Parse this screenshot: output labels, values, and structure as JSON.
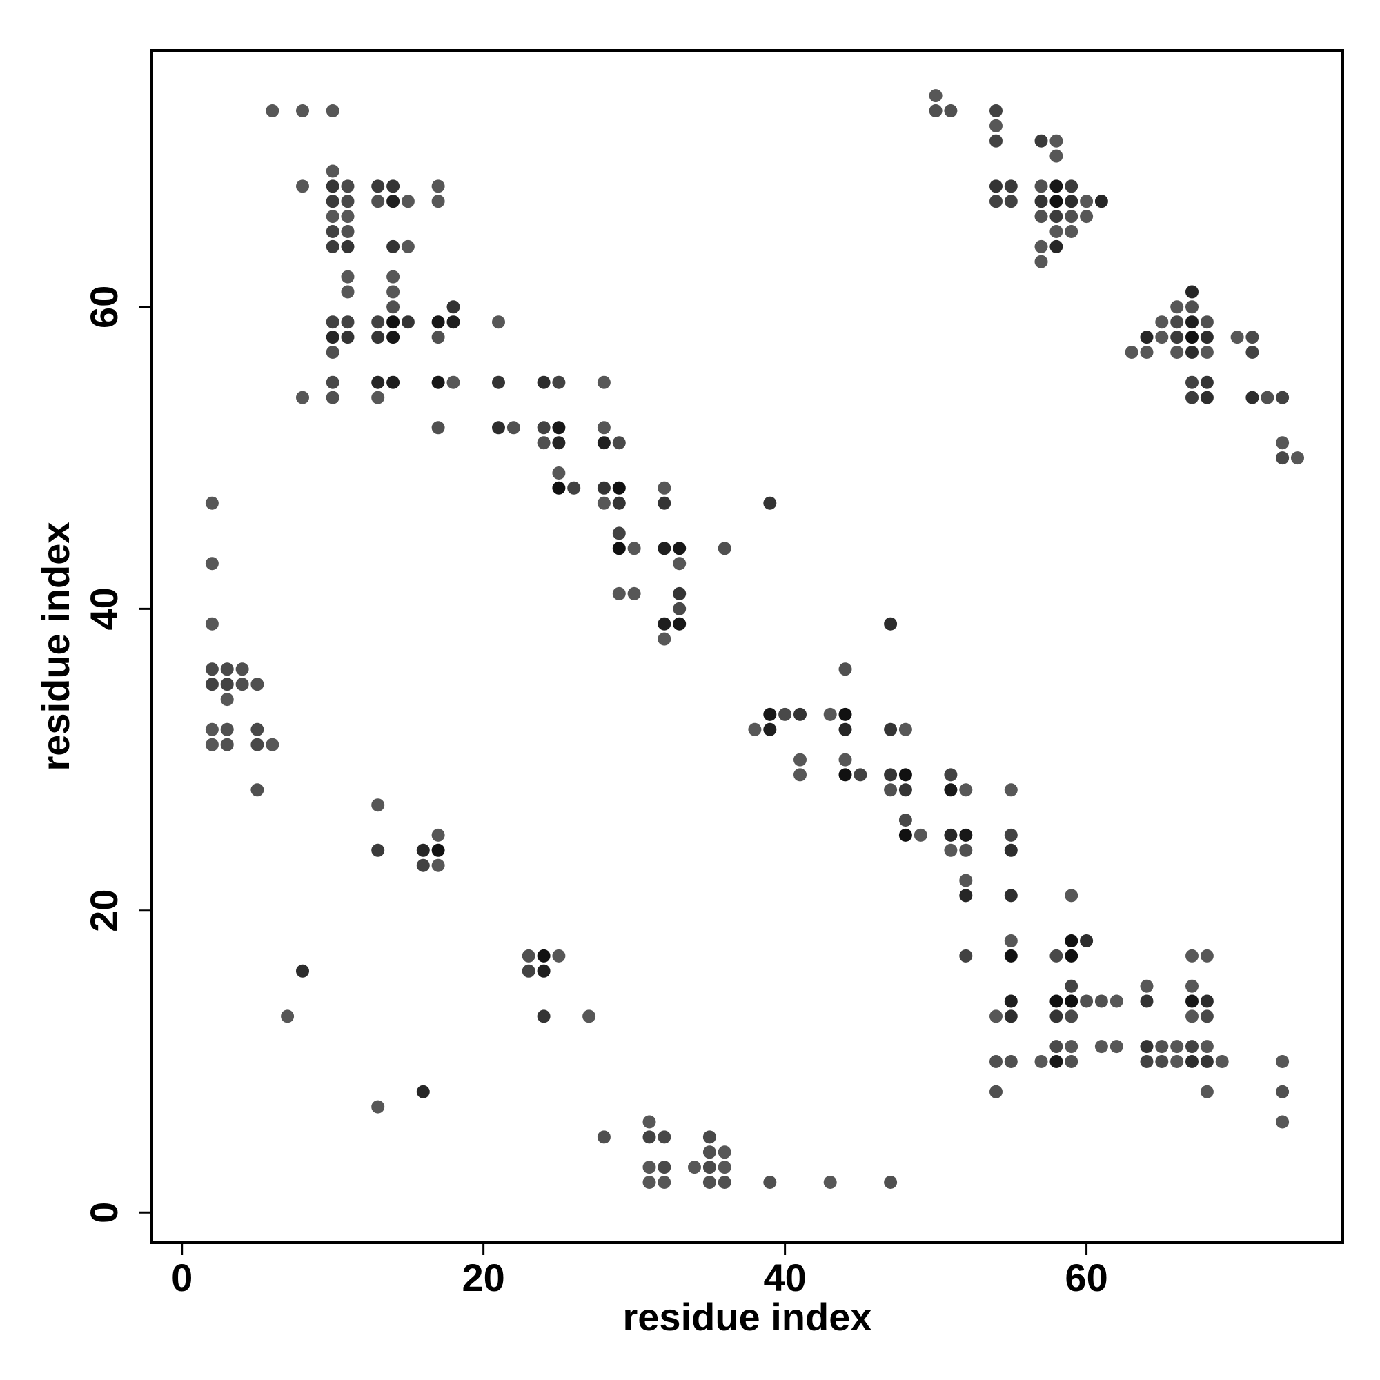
{
  "chart_data": {
    "type": "scatter",
    "xlabel": "residue index",
    "ylabel": "residue index",
    "xlim": [
      -2,
      77
    ],
    "ylim": [
      -2,
      77
    ],
    "x_ticks": [
      0,
      20,
      40,
      60
    ],
    "y_ticks": [
      0,
      20,
      40,
      60
    ],
    "x_tick_labels": [
      "0",
      "20",
      "40",
      "60"
    ],
    "y_tick_labels": [
      "0",
      "20",
      "40",
      "60"
    ],
    "grid": false,
    "legend": "none",
    "points": [
      [
        6,
        73,
        0.45
      ],
      [
        8,
        73,
        0.45
      ],
      [
        10,
        73,
        0.45
      ],
      [
        8,
        68,
        0.45
      ],
      [
        10,
        69,
        0.45
      ],
      [
        10,
        68,
        0.7
      ],
      [
        10,
        67,
        0.65
      ],
      [
        10,
        66,
        0.45
      ],
      [
        10,
        65,
        0.6
      ],
      [
        10,
        64,
        0.65
      ],
      [
        11,
        68,
        0.55
      ],
      [
        11,
        67,
        0.55
      ],
      [
        11,
        66,
        0.45
      ],
      [
        11,
        65,
        0.5
      ],
      [
        11,
        64,
        0.7
      ],
      [
        11,
        62,
        0.45
      ],
      [
        11,
        61,
        0.45
      ],
      [
        10,
        59,
        0.6
      ],
      [
        10,
        58,
        0.8
      ],
      [
        10,
        57,
        0.5
      ],
      [
        10,
        55,
        0.55
      ],
      [
        10,
        54,
        0.5
      ],
      [
        11,
        59,
        0.6
      ],
      [
        11,
        58,
        0.7
      ],
      [
        8,
        54,
        0.45
      ],
      [
        13,
        68,
        0.65
      ],
      [
        13,
        67,
        0.5
      ],
      [
        14,
        68,
        0.7
      ],
      [
        14,
        67,
        0.85
      ],
      [
        15,
        67,
        0.45
      ],
      [
        14,
        64,
        0.7
      ],
      [
        15,
        64,
        0.45
      ],
      [
        14,
        62,
        0.45
      ],
      [
        14,
        61,
        0.45
      ],
      [
        14,
        60,
        0.5
      ],
      [
        13,
        59,
        0.6
      ],
      [
        14,
        59,
        0.95
      ],
      [
        15,
        59,
        0.7
      ],
      [
        13,
        58,
        0.7
      ],
      [
        14,
        58,
        0.9
      ],
      [
        13,
        55,
        0.8
      ],
      [
        14,
        55,
        0.85
      ],
      [
        13,
        54,
        0.45
      ],
      [
        17,
        68,
        0.45
      ],
      [
        17,
        67,
        0.45
      ],
      [
        17,
        59,
        0.9
      ],
      [
        18,
        59,
        0.85
      ],
      [
        18,
        60,
        0.7
      ],
      [
        17,
        58,
        0.5
      ],
      [
        17,
        55,
        0.9
      ],
      [
        18,
        55,
        0.45
      ],
      [
        17,
        52,
        0.5
      ],
      [
        21,
        59,
        0.45
      ],
      [
        21,
        55,
        0.7
      ],
      [
        21,
        52,
        0.75
      ],
      [
        22,
        52,
        0.5
      ],
      [
        24,
        55,
        0.75
      ],
      [
        25,
        55,
        0.6
      ],
      [
        24,
        52,
        0.6
      ],
      [
        25,
        52,
        0.9
      ],
      [
        24,
        51,
        0.5
      ],
      [
        25,
        51,
        0.8
      ],
      [
        25,
        49,
        0.45
      ],
      [
        25,
        48,
        0.95
      ],
      [
        26,
        48,
        0.6
      ],
      [
        28,
        55,
        0.45
      ],
      [
        28,
        52,
        0.45
      ],
      [
        28,
        51,
        0.85
      ],
      [
        29,
        51,
        0.55
      ],
      [
        28,
        48,
        0.7
      ],
      [
        29,
        48,
        0.95
      ],
      [
        28,
        47,
        0.45
      ],
      [
        29,
        47,
        0.7
      ],
      [
        29,
        45,
        0.6
      ],
      [
        29,
        44,
        0.95
      ],
      [
        30,
        44,
        0.45
      ],
      [
        29,
        41,
        0.45
      ],
      [
        30,
        41,
        0.45
      ],
      [
        32,
        48,
        0.45
      ],
      [
        32,
        47,
        0.7
      ],
      [
        32,
        44,
        0.85
      ],
      [
        33,
        44,
        0.9
      ],
      [
        33,
        43,
        0.45
      ],
      [
        33,
        41,
        0.7
      ],
      [
        33,
        40,
        0.55
      ],
      [
        32,
        39,
        0.85
      ],
      [
        33,
        39,
        0.9
      ],
      [
        32,
        38,
        0.45
      ],
      [
        36,
        44,
        0.5
      ],
      [
        39,
        47,
        0.7
      ],
      [
        2,
        47,
        0.45
      ],
      [
        2,
        43,
        0.45
      ],
      [
        2,
        39,
        0.45
      ],
      [
        2,
        36,
        0.55
      ],
      [
        3,
        36,
        0.55
      ],
      [
        4,
        36,
        0.5
      ],
      [
        2,
        35,
        0.6
      ],
      [
        3,
        35,
        0.6
      ],
      [
        4,
        35,
        0.5
      ],
      [
        5,
        35,
        0.5
      ],
      [
        3,
        34,
        0.45
      ],
      [
        2,
        32,
        0.45
      ],
      [
        3,
        32,
        0.5
      ],
      [
        5,
        32,
        0.55
      ],
      [
        2,
        31,
        0.45
      ],
      [
        3,
        31,
        0.5
      ],
      [
        5,
        31,
        0.55
      ],
      [
        6,
        31,
        0.45
      ],
      [
        5,
        28,
        0.5
      ],
      [
        13,
        27,
        0.45
      ],
      [
        13,
        24,
        0.65
      ],
      [
        16,
        24,
        0.8
      ],
      [
        17,
        24,
        0.95
      ],
      [
        17,
        25,
        0.45
      ],
      [
        16,
        23,
        0.6
      ],
      [
        17,
        23,
        0.45
      ],
      [
        8,
        16,
        0.75
      ],
      [
        7,
        13,
        0.45
      ],
      [
        23,
        17,
        0.5
      ],
      [
        24,
        17,
        0.95
      ],
      [
        25,
        17,
        0.45
      ],
      [
        23,
        16,
        0.6
      ],
      [
        24,
        16,
        0.85
      ],
      [
        24,
        13,
        0.7
      ],
      [
        27,
        13,
        0.45
      ],
      [
        13,
        7,
        0.45
      ],
      [
        16,
        8,
        0.8
      ],
      [
        28,
        5,
        0.5
      ],
      [
        31,
        6,
        0.45
      ],
      [
        31,
        5,
        0.6
      ],
      [
        32,
        5,
        0.55
      ],
      [
        31,
        3,
        0.45
      ],
      [
        32,
        3,
        0.55
      ],
      [
        31,
        2,
        0.45
      ],
      [
        32,
        2,
        0.45
      ],
      [
        34,
        3,
        0.45
      ],
      [
        35,
        5,
        0.55
      ],
      [
        35,
        4,
        0.5
      ],
      [
        36,
        4,
        0.45
      ],
      [
        35,
        3,
        0.55
      ],
      [
        36,
        3,
        0.45
      ],
      [
        35,
        2,
        0.5
      ],
      [
        36,
        2,
        0.5
      ],
      [
        39,
        2,
        0.5
      ],
      [
        43,
        2,
        0.45
      ],
      [
        47,
        2,
        0.5
      ],
      [
        38,
        32,
        0.45
      ],
      [
        39,
        33,
        0.9
      ],
      [
        40,
        33,
        0.55
      ],
      [
        41,
        33,
        0.7
      ],
      [
        39,
        32,
        0.85
      ],
      [
        41,
        30,
        0.45
      ],
      [
        41,
        29,
        0.45
      ],
      [
        43,
        33,
        0.45
      ],
      [
        44,
        33,
        0.95
      ],
      [
        44,
        32,
        0.8
      ],
      [
        44,
        36,
        0.5
      ],
      [
        44,
        30,
        0.45
      ],
      [
        44,
        29,
        0.95
      ],
      [
        45,
        29,
        0.6
      ],
      [
        47,
        39,
        0.75
      ],
      [
        47,
        32,
        0.7
      ],
      [
        48,
        32,
        0.45
      ],
      [
        47,
        29,
        0.7
      ],
      [
        48,
        29,
        0.95
      ],
      [
        47,
        28,
        0.5
      ],
      [
        48,
        28,
        0.7
      ],
      [
        48,
        26,
        0.55
      ],
      [
        48,
        25,
        0.95
      ],
      [
        49,
        25,
        0.45
      ],
      [
        51,
        29,
        0.6
      ],
      [
        51,
        28,
        0.9
      ],
      [
        52,
        28,
        0.45
      ],
      [
        51,
        25,
        0.8
      ],
      [
        52,
        25,
        0.9
      ],
      [
        51,
        24,
        0.45
      ],
      [
        52,
        24,
        0.5
      ],
      [
        52,
        22,
        0.45
      ],
      [
        52,
        21,
        0.8
      ],
      [
        52,
        17,
        0.6
      ],
      [
        55,
        28,
        0.45
      ],
      [
        55,
        25,
        0.6
      ],
      [
        55,
        24,
        0.75
      ],
      [
        55,
        21,
        0.75
      ],
      [
        55,
        18,
        0.45
      ],
      [
        55,
        17,
        0.95
      ],
      [
        55,
        14,
        0.85
      ],
      [
        54,
        13,
        0.45
      ],
      [
        55,
        13,
        0.75
      ],
      [
        54,
        10,
        0.5
      ],
      [
        55,
        10,
        0.5
      ],
      [
        54,
        8,
        0.5
      ],
      [
        59,
        21,
        0.45
      ],
      [
        59,
        18,
        0.95
      ],
      [
        60,
        18,
        0.75
      ],
      [
        58,
        17,
        0.55
      ],
      [
        59,
        17,
        0.95
      ],
      [
        59,
        15,
        0.6
      ],
      [
        58,
        14,
        0.95
      ],
      [
        59,
        14,
        0.95
      ],
      [
        60,
        14,
        0.5
      ],
      [
        58,
        13,
        0.7
      ],
      [
        59,
        13,
        0.55
      ],
      [
        61,
        14,
        0.5
      ],
      [
        62,
        14,
        0.45
      ],
      [
        57,
        10,
        0.45
      ],
      [
        58,
        11,
        0.55
      ],
      [
        59,
        11,
        0.45
      ],
      [
        58,
        10,
        0.9
      ],
      [
        59,
        10,
        0.5
      ],
      [
        61,
        11,
        0.45
      ],
      [
        62,
        11,
        0.45
      ],
      [
        64,
        15,
        0.45
      ],
      [
        64,
        14,
        0.7
      ],
      [
        64,
        11,
        0.7
      ],
      [
        65,
        11,
        0.5
      ],
      [
        66,
        11,
        0.45
      ],
      [
        64,
        10,
        0.6
      ],
      [
        65,
        10,
        0.55
      ],
      [
        66,
        10,
        0.45
      ],
      [
        67,
        17,
        0.45
      ],
      [
        68,
        17,
        0.45
      ],
      [
        67,
        15,
        0.45
      ],
      [
        67,
        14,
        0.9
      ],
      [
        68,
        14,
        0.75
      ],
      [
        67,
        13,
        0.45
      ],
      [
        68,
        13,
        0.55
      ],
      [
        67,
        11,
        0.6
      ],
      [
        68,
        11,
        0.45
      ],
      [
        67,
        10,
        0.75
      ],
      [
        68,
        10,
        0.7
      ],
      [
        69,
        10,
        0.45
      ],
      [
        68,
        8,
        0.45
      ],
      [
        73,
        10,
        0.45
      ],
      [
        73,
        8,
        0.5
      ],
      [
        73,
        6,
        0.45
      ],
      [
        50,
        74,
        0.45
      ],
      [
        50,
        73,
        0.5
      ],
      [
        51,
        73,
        0.5
      ],
      [
        54,
        73,
        0.6
      ],
      [
        54,
        72,
        0.45
      ],
      [
        54,
        71,
        0.6
      ],
      [
        54,
        68,
        0.7
      ],
      [
        55,
        68,
        0.65
      ],
      [
        54,
        67,
        0.6
      ],
      [
        55,
        67,
        0.6
      ],
      [
        57,
        71,
        0.65
      ],
      [
        58,
        71,
        0.45
      ],
      [
        58,
        70,
        0.45
      ],
      [
        57,
        68,
        0.5
      ],
      [
        58,
        68,
        0.9
      ],
      [
        59,
        68,
        0.65
      ],
      [
        57,
        67,
        0.7
      ],
      [
        58,
        67,
        0.95
      ],
      [
        59,
        67,
        0.75
      ],
      [
        60,
        67,
        0.45
      ],
      [
        61,
        67,
        0.8
      ],
      [
        57,
        66,
        0.5
      ],
      [
        58,
        66,
        0.65
      ],
      [
        59,
        66,
        0.5
      ],
      [
        60,
        66,
        0.45
      ],
      [
        58,
        65,
        0.45
      ],
      [
        59,
        65,
        0.45
      ],
      [
        57,
        64,
        0.45
      ],
      [
        58,
        64,
        0.8
      ],
      [
        57,
        63,
        0.45
      ],
      [
        67,
        61,
        0.8
      ],
      [
        66,
        60,
        0.45
      ],
      [
        67,
        60,
        0.5
      ],
      [
        65,
        59,
        0.45
      ],
      [
        66,
        59,
        0.55
      ],
      [
        67,
        59,
        0.85
      ],
      [
        68,
        59,
        0.5
      ],
      [
        64,
        58,
        0.8
      ],
      [
        65,
        58,
        0.45
      ],
      [
        66,
        58,
        0.65
      ],
      [
        67,
        58,
        0.95
      ],
      [
        68,
        58,
        0.75
      ],
      [
        63,
        57,
        0.45
      ],
      [
        64,
        57,
        0.45
      ],
      [
        66,
        57,
        0.45
      ],
      [
        67,
        57,
        0.75
      ],
      [
        68,
        57,
        0.45
      ],
      [
        67,
        55,
        0.6
      ],
      [
        68,
        55,
        0.7
      ],
      [
        67,
        54,
        0.65
      ],
      [
        68,
        54,
        0.75
      ],
      [
        70,
        58,
        0.45
      ],
      [
        71,
        58,
        0.55
      ],
      [
        71,
        57,
        0.6
      ],
      [
        71,
        54,
        0.75
      ],
      [
        72,
        54,
        0.5
      ],
      [
        73,
        54,
        0.6
      ],
      [
        73,
        51,
        0.45
      ],
      [
        73,
        50,
        0.55
      ],
      [
        74,
        50,
        0.45
      ]
    ]
  }
}
